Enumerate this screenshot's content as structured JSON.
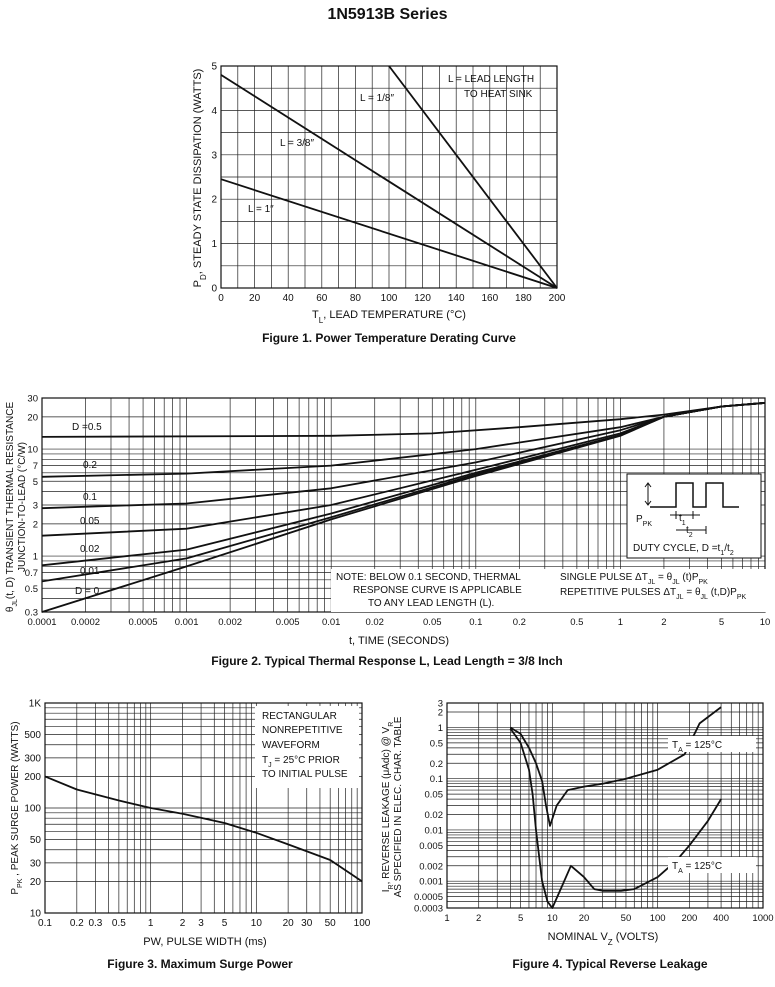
{
  "page_title": "1N5913B Series",
  "chart_data": [
    {
      "id": "fig1",
      "type": "line",
      "caption": "Figure 1. Power Temperature Derating Curve",
      "ylabel": "PD, STEADY STATE DISSIPATION (WATTS)",
      "xlabel": "TL, LEAD TEMPERATURE (°C)",
      "xlim": [
        0,
        200
      ],
      "ylim": [
        0,
        5
      ],
      "x_ticks": [
        "0",
        "20",
        "40",
        "60",
        "80",
        "100",
        "120",
        "140",
        "160",
        "180",
        "200"
      ],
      "y_ticks": [
        "0",
        "1",
        "2",
        "3",
        "4",
        "5"
      ],
      "grid": true,
      "series": [
        {
          "name": "L = 1/8″",
          "x": [
            100,
            200
          ],
          "y": [
            5.0,
            0
          ]
        },
        {
          "name": "L = 3/8″",
          "x": [
            0,
            200
          ],
          "y": [
            4.8,
            0
          ]
        },
        {
          "name": "L = 1″",
          "x": [
            0,
            200
          ],
          "y": [
            2.45,
            0
          ]
        }
      ],
      "legend_note": [
        "L = LEAD LENGTH",
        "TO HEAT SINK"
      ]
    },
    {
      "id": "fig2",
      "type": "line",
      "caption": "Figure 2. Typical Thermal Response L, Lead Length = 3/8 Inch",
      "ylabel": "θJL(t, D) TRANSIENT THERMAL RESISTANCE JUNCTION-TO-LEAD (°C/W)",
      "ylabel_lines": [
        "θJL(t, D) TRANSIENT THERMAL RESISTANCE",
        "JUNCTION-TO-LEAD (°C/W)"
      ],
      "xlabel": "t, TIME (SECONDS)",
      "x_scale": "log",
      "y_scale": "log",
      "xlim": [
        0.0001,
        10
      ],
      "ylim": [
        0.3,
        30
      ],
      "x_ticks": [
        "0.0001",
        "0.0002",
        "0.0005",
        "0.001",
        "0.002",
        "0.005",
        "0.01",
        "0.02",
        "0.05",
        "0.1",
        "0.2",
        "0.5",
        "1",
        "2",
        "5",
        "10"
      ],
      "y_ticks": [
        "0.3",
        "0.5",
        "0.7",
        "1",
        "2",
        "3",
        "5",
        "7",
        "10",
        "20",
        "30"
      ],
      "grid": true,
      "series": [
        {
          "name": "D =0.5",
          "x": [
            0.0001,
            0.01,
            0.05,
            0.2,
            1,
            2,
            5,
            10
          ],
          "y": [
            13,
            13.3,
            14,
            16,
            19,
            21,
            25,
            27
          ]
        },
        {
          "name": "0.2",
          "x": [
            0.0001,
            0.001,
            0.01,
            0.1,
            1,
            2,
            5,
            10
          ],
          "y": [
            5.5,
            5.9,
            7,
            10,
            16,
            20,
            25,
            27
          ]
        },
        {
          "name": "0.1",
          "x": [
            0.0001,
            0.001,
            0.01,
            0.1,
            1,
            2,
            5,
            10
          ],
          "y": [
            2.8,
            3.1,
            4.3,
            7.5,
            15,
            20,
            25,
            27
          ]
        },
        {
          "name": "0.05",
          "x": [
            0.0001,
            0.001,
            0.01,
            0.1,
            1,
            2,
            5,
            10
          ],
          "y": [
            1.55,
            1.8,
            3,
            6.4,
            14,
            20,
            25,
            27
          ]
        },
        {
          "name": "0.02",
          "x": [
            0.0001,
            0.001,
            0.01,
            0.1,
            1,
            2,
            5,
            10
          ],
          "y": [
            0.82,
            1.15,
            2.5,
            6,
            13.5,
            20,
            25,
            27
          ]
        },
        {
          "name": "0.01",
          "x": [
            0.0001,
            0.001,
            0.01,
            0.1,
            1,
            2,
            5,
            10
          ],
          "y": [
            0.58,
            0.95,
            2.3,
            5.8,
            13.5,
            20,
            25,
            27
          ]
        },
        {
          "name": "D = 0",
          "x": [
            0.0001,
            0.001,
            0.01,
            0.1,
            1,
            2,
            5,
            10
          ],
          "y": [
            0.3,
            0.8,
            2.2,
            5.6,
            13.3,
            20,
            25,
            27
          ]
        }
      ],
      "note": [
        "NOTE: BELOW 0.1 SECOND, THERMAL",
        "RESPONSE CURVE IS APPLICABLE",
        "TO ANY LEAD LENGTH (L)."
      ],
      "formulas": [
        "SINGLE PULSE ΔTJL = θJL (t)PPK",
        "REPETITIVE PULSES ΔTJL = θJL (t,D)PPK"
      ],
      "inset": {
        "ppk": "PPK",
        "t1": "t1",
        "t2": "t2",
        "duty": "DUTY CYCLE, D =t1/t2"
      }
    },
    {
      "id": "fig3",
      "type": "line",
      "caption": "Figure 3. Maximum Surge Power",
      "ylabel": "PPK , PEAK SURGE POWER (WATTS)",
      "xlabel": "PW, PULSE WIDTH (ms)",
      "x_scale": "log",
      "y_scale": "log",
      "xlim": [
        0.1,
        100
      ],
      "ylim": [
        10,
        1000
      ],
      "x_ticks": [
        "0.1",
        "0.2",
        "0.3",
        "0.5",
        "1",
        "2",
        "3",
        "5",
        "10",
        "20",
        "30",
        "50",
        "100"
      ],
      "y_ticks": [
        "10",
        "20",
        "30",
        "50",
        "100",
        "200",
        "300",
        "500",
        "1K"
      ],
      "grid": true,
      "series": [
        {
          "x": [
            0.1,
            0.2,
            0.5,
            1,
            2,
            5,
            10,
            20,
            50,
            100
          ],
          "y": [
            200,
            150,
            118,
            100,
            88,
            72,
            58,
            45,
            32,
            20
          ]
        }
      ],
      "annotation": [
        "RECTANGULAR",
        "NONREPETITIVE",
        "WAVEFORM",
        "TJ = 25°C PRIOR",
        "TO INITIAL PULSE"
      ]
    },
    {
      "id": "fig4",
      "type": "line",
      "caption": "Figure 4. Typical Reverse Leakage",
      "ylabel": "IR, REVERSE LEAKAGE (μAdc) @ VR AS SPECIFIED IN ELEC. CHAR. TABLE",
      "ylabel_lines": [
        "IR, REVERSE LEAKAGE (μAdc) @ VR",
        "AS SPECIFIED IN ELEC. CHAR. TABLE"
      ],
      "xlabel": "NOMINAL VZ (VOLTS)",
      "x_scale": "log",
      "y_scale": "log",
      "xlim": [
        1,
        1000
      ],
      "ylim": [
        0.0003,
        3
      ],
      "x_ticks": [
        "1",
        "2",
        "5",
        "10",
        "20",
        "50",
        "100",
        "200",
        "400",
        "1000"
      ],
      "y_ticks": [
        "0.0003",
        "0.0005",
        "0.001",
        "0.002",
        "0.005",
        "0.01",
        "0.02",
        "0.05",
        "0.1",
        "0.2",
        "0.5",
        "1",
        "2",
        "3"
      ],
      "grid": true,
      "series": [
        {
          "name": "TA = 125°C",
          "x": [
            4,
            5,
            6,
            7,
            8,
            8.7,
            9.5,
            11,
            14,
            20,
            30,
            50,
            100,
            180,
            250,
            400
          ],
          "y": [
            1,
            0.75,
            0.4,
            0.2,
            0.09,
            0.03,
            0.012,
            0.03,
            0.06,
            0.07,
            0.08,
            0.1,
            0.15,
            0.3,
            1.2,
            2.5
          ]
        },
        {
          "name": "TA = 125°C",
          "x": [
            4,
            5,
            6,
            6.5,
            7,
            8,
            9,
            10,
            12,
            15,
            20,
            25,
            30,
            45,
            60,
            100,
            150,
            200,
            300,
            400
          ],
          "y": [
            0.95,
            0.5,
            0.15,
            0.05,
            0.01,
            0.001,
            0.0004,
            0.0003,
            0.0007,
            0.002,
            0.0012,
            0.0007,
            0.00065,
            0.00065,
            0.0007,
            0.0012,
            0.0025,
            0.005,
            0.015,
            0.04
          ]
        }
      ]
    }
  ]
}
